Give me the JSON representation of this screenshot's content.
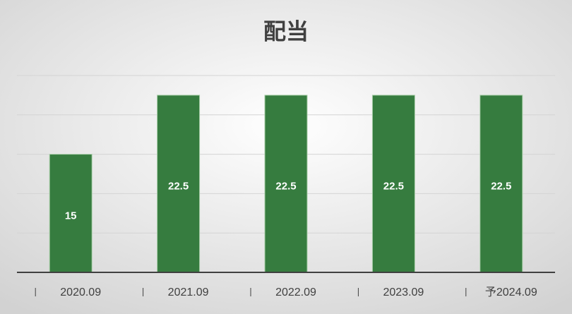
{
  "chart_data": {
    "type": "bar",
    "title": "配当",
    "categories": [
      "2020.09",
      "2021.09",
      "2022.09",
      "2023.09",
      "予2024.09"
    ],
    "values": [
      15,
      22.5,
      22.5,
      22.5,
      22.5
    ],
    "color": "#367c3f",
    "ylim": [
      0,
      25
    ],
    "yticks": [
      0,
      5,
      10,
      15,
      20,
      25
    ],
    "grid": true
  }
}
